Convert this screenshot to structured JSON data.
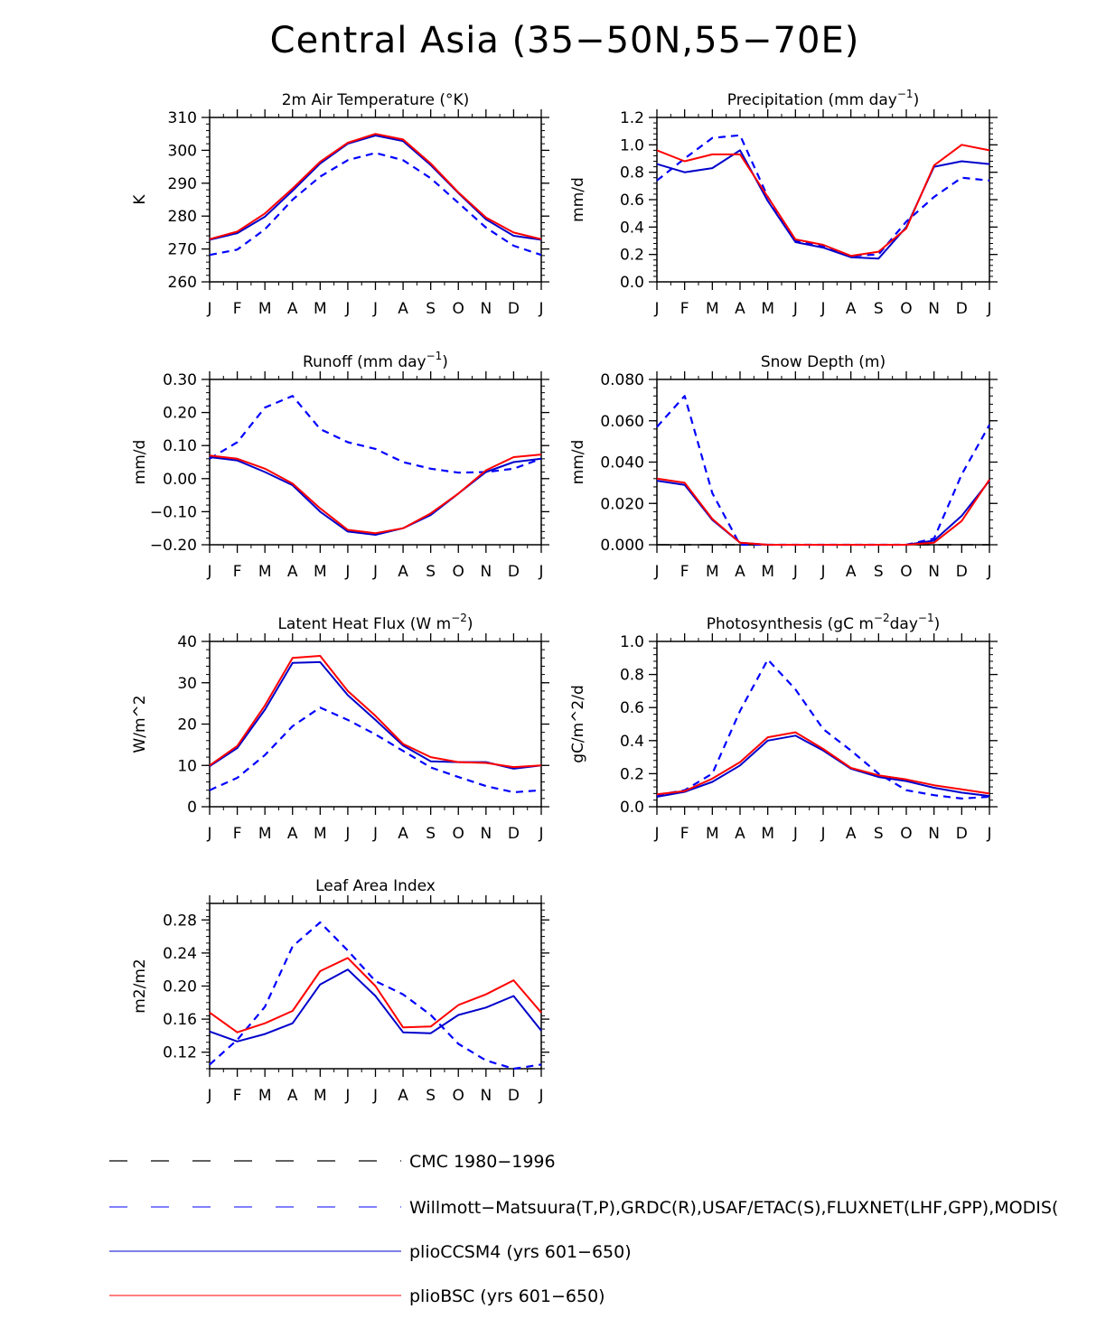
{
  "title": "Central Asia (35−50N,55−70E)",
  "months": [
    "J",
    "F",
    "M",
    "A",
    "M",
    "J",
    "J",
    "A",
    "S",
    "O",
    "N",
    "D",
    "J"
  ],
  "colors": {
    "cmc": "#000000",
    "obs": "#0000ff",
    "ccsm": "#0000cc",
    "bsc": "#ff0000"
  },
  "chart_data": [
    {
      "type": "line",
      "title": "2m Air Temperature (°K)",
      "title_suffix": "",
      "ylabel": "K",
      "ylim": [
        260,
        310
      ],
      "yticks": [
        260,
        270,
        280,
        290,
        300,
        310
      ],
      "ytick_labels": [
        "260",
        "270",
        "280",
        "290",
        "300",
        "310"
      ],
      "categories": [
        "J",
        "F",
        "M",
        "A",
        "M",
        "J",
        "J",
        "A",
        "S",
        "O",
        "N",
        "D",
        "J"
      ],
      "series": [
        {
          "name": "Willmott−Matsuura",
          "style": "obs",
          "values": [
            268.2,
            269.8,
            276,
            285,
            292,
            297,
            299.2,
            297,
            291.5,
            284,
            276.5,
            271,
            268.2
          ]
        },
        {
          "name": "plioCCSM4",
          "style": "ccsm",
          "values": [
            272.8,
            274.8,
            279.8,
            287.7,
            296,
            302,
            304.5,
            302.8,
            295.5,
            287,
            279,
            274,
            272.8
          ]
        },
        {
          "name": "plioBSC",
          "style": "bsc",
          "values": [
            273,
            275.3,
            280.8,
            288.4,
            296.5,
            302.3,
            305,
            303.3,
            296,
            287.2,
            279.6,
            275,
            273
          ]
        }
      ]
    },
    {
      "type": "line",
      "title": "Precipitation (mm day",
      "title_suffix": ")",
      "ylabel": "mm/d",
      "ylim": [
        0,
        1.2
      ],
      "yticks": [
        0,
        0.2,
        0.4,
        0.6,
        0.8,
        1.0,
        1.2
      ],
      "ytick_labels": [
        "0.0",
        "0.2",
        "0.4",
        "0.6",
        "0.8",
        "1.0",
        "1.2"
      ],
      "categories": [
        "J",
        "F",
        "M",
        "A",
        "M",
        "J",
        "J",
        "A",
        "S",
        "O",
        "N",
        "D",
        "J"
      ],
      "series": [
        {
          "name": "Willmott−Matsuura",
          "style": "obs",
          "values": [
            0.74,
            0.9,
            1.05,
            1.07,
            0.62,
            0.3,
            0.26,
            0.19,
            0.2,
            0.44,
            0.62,
            0.76,
            0.74
          ]
        },
        {
          "name": "plioCCSM4",
          "style": "ccsm",
          "values": [
            0.86,
            0.8,
            0.83,
            0.96,
            0.59,
            0.29,
            0.25,
            0.18,
            0.17,
            0.4,
            0.84,
            0.88,
            0.86
          ]
        },
        {
          "name": "plioBSC",
          "style": "bsc",
          "values": [
            0.96,
            0.88,
            0.93,
            0.93,
            0.62,
            0.31,
            0.27,
            0.19,
            0.22,
            0.39,
            0.85,
            1.0,
            0.96
          ]
        }
      ]
    },
    {
      "type": "line",
      "title": "Runoff (mm day",
      "title_suffix": ")",
      "ylabel": "mm/d",
      "ylim": [
        -0.2,
        0.3
      ],
      "yticks": [
        -0.2,
        -0.1,
        0,
        0.1,
        0.2,
        0.3
      ],
      "ytick_labels": [
        "−0.20",
        "−0.10",
        "0.00",
        "0.10",
        "0.20",
        "0.30"
      ],
      "categories": [
        "J",
        "F",
        "M",
        "A",
        "M",
        "J",
        "J",
        "A",
        "S",
        "O",
        "N",
        "D",
        "J"
      ],
      "series": [
        {
          "name": "GRDC",
          "style": "obs",
          "values": [
            0.06,
            0.11,
            0.215,
            0.25,
            0.15,
            0.11,
            0.09,
            0.05,
            0.03,
            0.018,
            0.02,
            0.03,
            0.06
          ]
        },
        {
          "name": "plioCCSM4",
          "style": "ccsm",
          "values": [
            0.065,
            0.055,
            0.02,
            -0.02,
            -0.1,
            -0.16,
            -0.17,
            -0.15,
            -0.11,
            -0.045,
            0.02,
            0.05,
            0.06
          ]
        },
        {
          "name": "plioBSC",
          "style": "bsc",
          "values": [
            0.07,
            0.06,
            0.03,
            -0.015,
            -0.09,
            -0.155,
            -0.165,
            -0.15,
            -0.105,
            -0.045,
            0.025,
            0.065,
            0.073
          ]
        }
      ]
    },
    {
      "type": "line",
      "title": "Snow Depth (m)",
      "title_suffix": "",
      "ylabel": "mm/d",
      "ylim": [
        0,
        0.08
      ],
      "yticks": [
        0,
        0.02,
        0.04,
        0.06,
        0.08
      ],
      "ytick_labels": [
        "0.000",
        "0.020",
        "0.040",
        "0.060",
        "0.080"
      ],
      "categories": [
        "J",
        "F",
        "M",
        "A",
        "M",
        "J",
        "J",
        "A",
        "S",
        "O",
        "N",
        "D",
        "J"
      ],
      "series": [
        {
          "name": "CMC 1980−1996",
          "style": "cmc",
          "values": [
            0,
            0,
            0,
            0,
            0,
            0,
            0,
            0,
            0,
            0,
            0,
            0,
            0
          ]
        },
        {
          "name": "USAF/ETAC",
          "style": "obs",
          "values": [
            0.057,
            0.072,
            0.025,
            0,
            0,
            0,
            0,
            0,
            0,
            0,
            0.003,
            0.034,
            0.058
          ]
        },
        {
          "name": "plioCCSM4",
          "style": "ccsm",
          "values": [
            0.031,
            0.029,
            0.012,
            0.001,
            0,
            0,
            0,
            0,
            0,
            0,
            0.002,
            0.014,
            0.031
          ]
        },
        {
          "name": "plioBSC",
          "style": "bsc",
          "values": [
            0.032,
            0.03,
            0.0125,
            0.001,
            0,
            0,
            0,
            0,
            0,
            0,
            0.001,
            0.0115,
            0.0315
          ]
        }
      ]
    },
    {
      "type": "line",
      "title": "Latent Heat Flux (W m",
      "title_suffix": ")",
      "ylabel": "W/m^2",
      "ylim": [
        0,
        40
      ],
      "yticks": [
        0,
        10,
        20,
        30,
        40
      ],
      "ytick_labels": [
        "0",
        "10",
        "20",
        "30",
        "40"
      ],
      "categories": [
        "J",
        "F",
        "M",
        "A",
        "M",
        "J",
        "J",
        "A",
        "S",
        "O",
        "N",
        "D",
        "J"
      ],
      "series": [
        {
          "name": "FLUXNET",
          "style": "obs",
          "values": [
            4,
            7,
            12.5,
            19.5,
            24,
            21,
            17.5,
            13.5,
            9.5,
            7.2,
            5,
            3.5,
            4
          ]
        },
        {
          "name": "plioCCSM4",
          "style": "ccsm",
          "values": [
            9.8,
            14.2,
            23.5,
            34.8,
            35,
            27,
            21,
            14.8,
            11,
            10.8,
            10.8,
            9.2,
            10
          ]
        },
        {
          "name": "plioBSC",
          "style": "bsc",
          "values": [
            10,
            14.7,
            24.5,
            36,
            36.5,
            28,
            22,
            15.2,
            12,
            10.8,
            10.6,
            9.6,
            10
          ]
        }
      ]
    },
    {
      "type": "line",
      "title": "Photosynthesis (gC m",
      "title_suffix": ")",
      "ylabel": "gC/m^2/d",
      "ylim": [
        0,
        1.0
      ],
      "yticks": [
        0,
        0.2,
        0.4,
        0.6,
        0.8,
        1.0
      ],
      "ytick_labels": [
        "0.0",
        "0.2",
        "0.4",
        "0.6",
        "0.8",
        "1.0"
      ],
      "categories": [
        "J",
        "F",
        "M",
        "A",
        "M",
        "J",
        "J",
        "A",
        "S",
        "O",
        "N",
        "D",
        "J"
      ],
      "series": [
        {
          "name": "FLUXNET",
          "style": "obs",
          "values": [
            0.07,
            0.1,
            0.2,
            0.58,
            0.89,
            0.71,
            0.47,
            0.34,
            0.2,
            0.1,
            0.07,
            0.05,
            0.06
          ]
        },
        {
          "name": "plioCCSM4",
          "style": "ccsm",
          "values": [
            0.06,
            0.09,
            0.15,
            0.25,
            0.4,
            0.43,
            0.34,
            0.23,
            0.18,
            0.155,
            0.115,
            0.085,
            0.065
          ]
        },
        {
          "name": "plioBSC",
          "style": "bsc",
          "values": [
            0.075,
            0.095,
            0.17,
            0.27,
            0.42,
            0.45,
            0.35,
            0.235,
            0.19,
            0.165,
            0.13,
            0.105,
            0.08
          ]
        }
      ]
    },
    {
      "type": "line",
      "title": "Leaf Area Index",
      "title_suffix": "",
      "ylabel": "m2/m2",
      "ylim": [
        0.1,
        0.3
      ],
      "yticks": [
        0.12,
        0.16,
        0.2,
        0.24,
        0.28
      ],
      "ytick_labels": [
        "0.12",
        "0.16",
        "0.20",
        "0.24",
        "0.28"
      ],
      "categories": [
        "J",
        "F",
        "M",
        "A",
        "M",
        "J",
        "J",
        "A",
        "S",
        "O",
        "N",
        "D",
        "J"
      ],
      "series": [
        {
          "name": "MODIS",
          "style": "obs",
          "values": [
            0.105,
            0.135,
            0.175,
            0.248,
            0.277,
            0.243,
            0.206,
            0.19,
            0.165,
            0.13,
            0.11,
            0.1,
            0.105
          ]
        },
        {
          "name": "plioCCSM4",
          "style": "ccsm",
          "values": [
            0.145,
            0.133,
            0.142,
            0.155,
            0.202,
            0.22,
            0.188,
            0.144,
            0.143,
            0.165,
            0.174,
            0.188,
            0.146
          ]
        },
        {
          "name": "plioBSC",
          "style": "bsc",
          "values": [
            0.168,
            0.144,
            0.155,
            0.17,
            0.218,
            0.234,
            0.2,
            0.15,
            0.151,
            0.177,
            0.19,
            0.207,
            0.168
          ]
        }
      ]
    }
  ],
  "legend": [
    {
      "label": "CMC 1980−1996",
      "style": "cmc"
    },
    {
      "label": "Willmott−Matsuura(T,P),GRDC(R),USAF/ETAC(S),FLUXNET(LHF,GPP),MODIS(",
      "style": "obs"
    },
    {
      "label": "plioCCSM4 (yrs 601−650)",
      "style": "ccsm"
    },
    {
      "label": "plioBSC (yrs 601−650)",
      "style": "bsc"
    }
  ]
}
